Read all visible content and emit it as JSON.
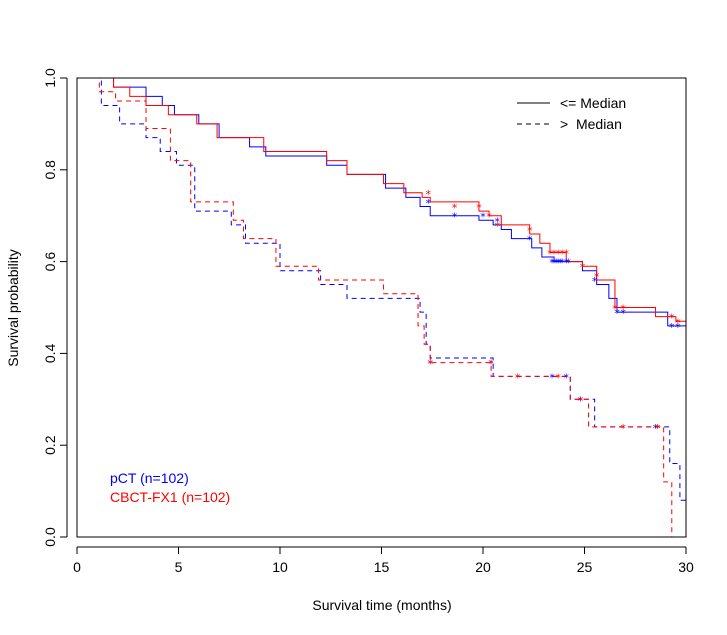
{
  "chart_data": {
    "type": "line",
    "step": true,
    "title": "",
    "xlabel": "Survival time (months)",
    "ylabel": "Survival probability",
    "xlim": [
      0,
      30
    ],
    "ylim": [
      0,
      1
    ],
    "x_ticks": [
      0,
      5,
      10,
      15,
      20,
      25,
      30
    ],
    "y_ticks": [
      0.0,
      0.2,
      0.4,
      0.6,
      0.8,
      1.0
    ],
    "x_tick_labels": [
      "0",
      "5",
      "10",
      "15",
      "20",
      "25",
      "30"
    ],
    "y_tick_labels": [
      "0.0",
      "0.2",
      "0.4",
      "0.6",
      "0.8",
      "1.0"
    ],
    "grid": false,
    "legend": {
      "placement": "top-right",
      "entries": [
        {
          "label": "<= Median",
          "dash": "solid"
        },
        {
          "label": ">  Median",
          "dash": "dashed"
        }
      ]
    },
    "group_labels": [
      {
        "label": "pCT (n=102)",
        "color": "#0000ff"
      },
      {
        "label": "CBCT-FX1 (n=102)",
        "color": "#ff0000"
      }
    ],
    "series": [
      {
        "group": "pCT (n=102)",
        "color": "#0000ff",
        "dash": "solid",
        "x": [
          0,
          1.8,
          3.4,
          4.2,
          4.8,
          6.0,
          7.0,
          8.5,
          9.3,
          12.3,
          13.3,
          15.2,
          16.2,
          16.9,
          17.4,
          19.8,
          20.5,
          20.9,
          21.4,
          22.4,
          22.9,
          23.5,
          24.0,
          24.9,
          25.6,
          26.2,
          26.6,
          29.1,
          30.0
        ],
        "y": [
          1.0,
          0.98,
          0.96,
          0.94,
          0.92,
          0.9,
          0.87,
          0.85,
          0.83,
          0.81,
          0.79,
          0.76,
          0.74,
          0.72,
          0.7,
          0.69,
          0.68,
          0.67,
          0.65,
          0.63,
          0.61,
          0.6,
          0.6,
          0.58,
          0.55,
          0.52,
          0.49,
          0.46,
          0.43
        ]
      },
      {
        "group": "CBCT-FX1 (n=102)",
        "color": "#ff0000",
        "dash": "solid",
        "x": [
          0,
          1.8,
          2.6,
          3.4,
          4.5,
          5.9,
          6.9,
          9.2,
          12.3,
          13.3,
          15.1,
          16.1,
          17.0,
          17.4,
          19.8,
          20.3,
          20.9,
          22.3,
          22.8,
          23.3,
          24.1,
          24.9,
          25.6,
          26.5,
          28.5,
          29.5,
          30.0
        ],
        "y": [
          1.0,
          0.98,
          0.96,
          0.94,
          0.92,
          0.9,
          0.87,
          0.84,
          0.82,
          0.79,
          0.77,
          0.75,
          0.74,
          0.73,
          0.71,
          0.7,
          0.68,
          0.66,
          0.64,
          0.62,
          0.6,
          0.59,
          0.56,
          0.5,
          0.48,
          0.47,
          0.45
        ]
      },
      {
        "group": "pCT (n=102)",
        "color": "#0000ff",
        "dash": "dashed",
        "x": [
          0,
          1.2,
          2.1,
          3.4,
          4.1,
          4.9,
          5.8,
          7.6,
          8.3,
          10.0,
          12.0,
          13.3,
          15.1,
          16.9,
          17.2,
          17.4,
          20.5,
          23.8,
          24.3,
          25.5,
          29.2,
          29.7,
          30.0
        ],
        "y": [
          1.0,
          0.94,
          0.9,
          0.87,
          0.84,
          0.81,
          0.71,
          0.68,
          0.64,
          0.58,
          0.55,
          0.52,
          0.52,
          0.49,
          0.42,
          0.39,
          0.35,
          0.35,
          0.3,
          0.24,
          0.16,
          0.08,
          0.08
        ]
      },
      {
        "group": "CBCT-FX1 (n=102)",
        "color": "#ff0000",
        "dash": "dashed",
        "x": [
          0,
          1.1,
          1.9,
          3.4,
          4.6,
          5.6,
          7.7,
          8.2,
          9.8,
          11.9,
          15.1,
          16.8,
          17.1,
          17.4,
          20.4,
          23.5,
          24.3,
          25.2,
          28.9,
          29.3,
          30.0
        ],
        "y": [
          1.0,
          0.97,
          0.95,
          0.89,
          0.82,
          0.73,
          0.69,
          0.65,
          0.59,
          0.56,
          0.53,
          0.46,
          0.42,
          0.38,
          0.35,
          0.35,
          0.3,
          0.24,
          0.12,
          0.0,
          0.0
        ]
      }
    ],
    "censor_marks": [
      {
        "color": "#0000ff",
        "x": [
          17.3,
          18.6,
          20.0,
          20.7,
          22.3,
          23.4,
          23.5,
          23.6,
          23.7,
          23.8,
          23.9,
          24.1,
          24.2,
          25.5,
          26.6,
          26.9,
          29.3,
          29.6
        ],
        "y": [
          0.73,
          0.7,
          0.7,
          0.69,
          0.65,
          0.6,
          0.6,
          0.6,
          0.6,
          0.6,
          0.6,
          0.6,
          0.6,
          0.56,
          0.49,
          0.49,
          0.46,
          0.46
        ]
      },
      {
        "color": "#ff0000",
        "x": [
          17.3,
          18.6,
          19.8,
          20.3,
          20.7,
          22.3,
          23.3,
          23.5,
          23.7,
          23.9,
          24.1,
          24.9,
          25.6,
          26.5,
          26.9,
          29.3,
          29.6
        ],
        "y": [
          0.75,
          0.72,
          0.72,
          0.7,
          0.68,
          0.67,
          0.62,
          0.62,
          0.62,
          0.62,
          0.62,
          0.59,
          0.57,
          0.5,
          0.5,
          0.48,
          0.47
        ]
      },
      {
        "color": "#0000ff",
        "x": [
          17.4,
          20.4,
          23.4,
          24.1,
          24.8,
          28.5
        ],
        "y": [
          0.38,
          0.38,
          0.35,
          0.35,
          0.3,
          0.24
        ]
      },
      {
        "color": "#ff0000",
        "x": [
          17.4,
          20.4,
          21.7,
          23.7,
          24.8,
          26.9,
          28.6
        ],
        "y": [
          0.38,
          0.38,
          0.35,
          0.35,
          0.3,
          0.24,
          0.24
        ]
      }
    ]
  }
}
